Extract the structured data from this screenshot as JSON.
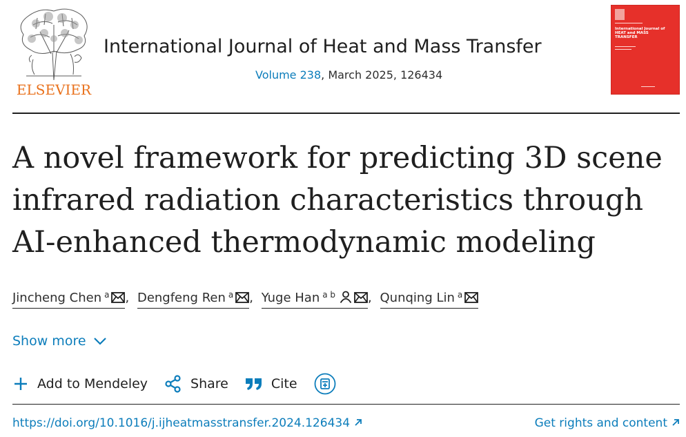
{
  "header": {
    "logo_text": "ELSEVIER",
    "journal_title": "International Journal of Heat and Mass Transfer",
    "volume_link": "Volume 238",
    "volume_rest": ", March 2025, 126434",
    "cover_text_1": "International Journal of",
    "cover_text_2": "HEAT and MASS",
    "cover_text_3": "TRANSFER"
  },
  "article": {
    "title": "A novel framework for predicting 3D scene infrared radiation characteristics through AI-enhanced thermodynamic modeling"
  },
  "authors": [
    {
      "name": "Jincheng Chen",
      "affil": "a"
    },
    {
      "name": "Dengfeng Ren",
      "affil": "a"
    },
    {
      "name": "Yuge Han",
      "affil": "a b"
    },
    {
      "name": "Qunqing Lin",
      "affil": "a"
    }
  ],
  "author_separator": ",",
  "show_more": "Show more",
  "toolbar": {
    "mendeley": "Add to Mendeley",
    "share": "Share",
    "cite": "Cite"
  },
  "footer": {
    "doi": "https://doi.org/10.1016/j.ijheatmasstransfer.2024.126434",
    "rights": "Get rights and content"
  },
  "colors": {
    "link": "#0c7dbb",
    "elsevier_orange": "#e9711c",
    "cover_red": "#e6302a"
  }
}
